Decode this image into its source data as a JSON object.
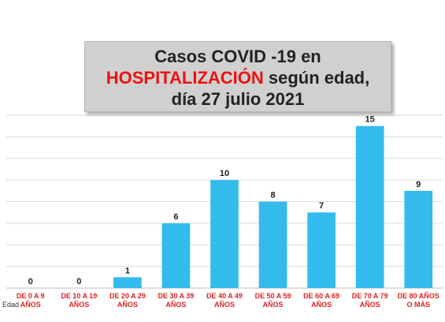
{
  "chart_data": {
    "type": "bar",
    "title_line1": "Casos COVID -19 en",
    "title_line2_highlight": "HOSPITALIZACIÓN",
    "title_line2_rest": " según edad,",
    "title_line3": "día 27 julio 2021",
    "xlabel": "Edad",
    "categories": [
      [
        "DE 0 A 9",
        "AÑOS"
      ],
      [
        "DE 10 A 19",
        "AÑOS"
      ],
      [
        "DE 20 A 29",
        "AÑOS"
      ],
      [
        "DE 30 A 39",
        "AÑOS"
      ],
      [
        "DE 40 A 49",
        "AÑOS"
      ],
      [
        "DE 50 A 59",
        "AÑOS"
      ],
      [
        "DE 60 A 69",
        "AÑOS"
      ],
      [
        "DE 70 A 79",
        "AÑOS"
      ],
      [
        "DE 80 AÑOS",
        "O MÁS"
      ]
    ],
    "values": [
      0,
      0,
      1,
      6,
      10,
      8,
      7,
      15,
      9
    ],
    "ylim": [
      0,
      16
    ],
    "grid": true,
    "bar_color": "#33bbee",
    "label_color": "#dd2222"
  }
}
